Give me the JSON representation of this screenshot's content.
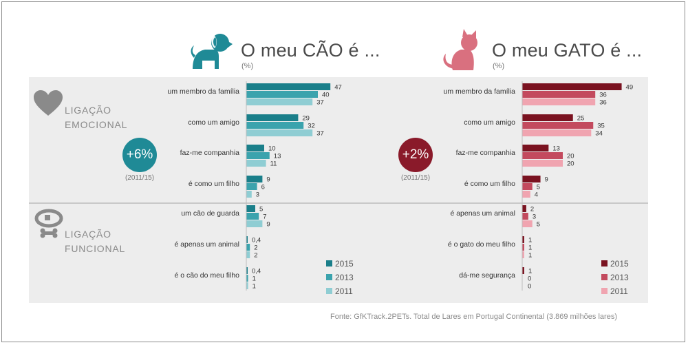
{
  "dog_panel": {
    "title": "O meu CÃO é ...",
    "unit": "(%)",
    "change": "+6%",
    "change_period": "(2011/15)",
    "accent": "#1f8a96"
  },
  "cat_panel": {
    "title": "O meu GATO é ...",
    "unit": "(%)",
    "change": "+2%",
    "change_period": "(2011/15)",
    "accent": "#8a1a2a"
  },
  "sections": {
    "emotional_line1": "LIGAÇÃO",
    "emotional_line2": "EMOCIONAL",
    "functional_line1": "LIGAÇÃO",
    "functional_line2": "FUNCIONAL"
  },
  "icons": {
    "heart": "heart-icon",
    "collar": "collar-icon",
    "dog": "dog-icon",
    "cat": "cat-icon"
  },
  "source": "Fonte: GfKTrack.2PETs. Total de Lares em Portugal Continental (3.869 milhões lares)",
  "chart_data": [
    {
      "type": "bar",
      "title": "O meu CÃO é ...",
      "unit": "(%)",
      "orientation": "horizontal",
      "categories": [
        "um membro da família",
        "como um amigo",
        "faz-me companhia",
        "é como um filho",
        "um cão de guarda",
        "é apenas um animal",
        "é o cão do meu filho"
      ],
      "series": [
        {
          "name": "2015",
          "color": "#1a7f8a",
          "values": [
            47,
            29,
            10,
            9,
            5,
            0.4,
            0.4
          ],
          "labels": [
            "47",
            "29",
            "10",
            "9",
            "5",
            "0,4",
            "0,4"
          ]
        },
        {
          "name": "2013",
          "color": "#3ba3ad",
          "values": [
            40,
            32,
            13,
            6,
            7,
            2,
            1
          ],
          "labels": [
            "40",
            "32",
            "13",
            "6",
            "7",
            "2",
            "1"
          ]
        },
        {
          "name": "2011",
          "color": "#8fcdd3",
          "values": [
            37,
            37,
            11,
            3,
            9,
            2,
            1
          ],
          "labels": [
            "37",
            "37",
            "11",
            "3",
            "9",
            "2",
            "1"
          ]
        }
      ]
    },
    {
      "type": "bar",
      "title": "O meu GATO é ...",
      "unit": "(%)",
      "orientation": "horizontal",
      "categories": [
        "um membro da família",
        "como um amigo",
        "faz-me companhia",
        "é como um filho",
        "é apenas um animal",
        "é o gato do meu filho",
        "dá-me segurança"
      ],
      "series": [
        {
          "name": "2015",
          "color": "#7a1220",
          "values": [
            49,
            25,
            13,
            9,
            2,
            1,
            1
          ],
          "labels": [
            "49",
            "25",
            "13",
            "9",
            "2",
            "1",
            "1"
          ]
        },
        {
          "name": "2013",
          "color": "#c34a5e",
          "values": [
            36,
            35,
            20,
            5,
            3,
            1,
            0
          ],
          "labels": [
            "36",
            "35",
            "20",
            "5",
            "3",
            "1",
            "0"
          ]
        },
        {
          "name": "2011",
          "color": "#f0a4b0",
          "values": [
            36,
            34,
            20,
            4,
            5,
            1,
            0
          ],
          "labels": [
            "36",
            "34",
            "20",
            "4",
            "5",
            "1",
            "0"
          ]
        }
      ]
    }
  ]
}
